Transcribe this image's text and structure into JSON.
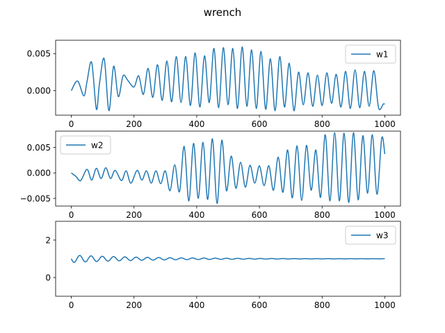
{
  "figure": {
    "title": "wrench"
  },
  "chart_data": [
    {
      "type": "line",
      "title": "",
      "xlabel": "",
      "ylabel": "",
      "xlim": [
        -50,
        1050
      ],
      "ylim": [
        -0.0033,
        0.0068
      ],
      "xticks": [
        0,
        200,
        400,
        600,
        800,
        1000
      ],
      "xtick_labels": [
        "0",
        "200",
        "400",
        "600",
        "800",
        "1000"
      ],
      "yticks": [
        0.0,
        0.005
      ],
      "ytick_labels": [
        "0.000",
        "0.005"
      ],
      "grid": false,
      "legend_position": "top-right",
      "color": "#1f77b4",
      "series": [
        {
          "name": "w1",
          "x": [
            0,
            20,
            40,
            50,
            65,
            80,
            90,
            105,
            120,
            135,
            150,
            165,
            180,
            200,
            215,
            230,
            245,
            260,
            275,
            290,
            305,
            320,
            335,
            350,
            365,
            380,
            395,
            410,
            425,
            440,
            455,
            470,
            485,
            500,
            515,
            530,
            545,
            560,
            575,
            590,
            605,
            620,
            635,
            650,
            665,
            680,
            695,
            710,
            725,
            740,
            755,
            770,
            785,
            800,
            815,
            830,
            845,
            860,
            875,
            890,
            905,
            920,
            935,
            950,
            965,
            980,
            995,
            1000
          ],
          "y": [
            0.0,
            0.0013,
            -0.0007,
            0.0012,
            0.0038,
            -0.0025,
            0.001,
            0.0043,
            -0.0027,
            0.0033,
            -0.0008,
            0.002,
            0.0014,
            0.0005,
            0.002,
            -0.0005,
            0.003,
            -0.0009,
            0.0035,
            -0.0013,
            0.004,
            -0.0015,
            0.0046,
            -0.0016,
            0.0046,
            -0.002,
            0.0051,
            -0.0022,
            0.0047,
            -0.0016,
            0.0057,
            -0.0023,
            0.0058,
            -0.0019,
            0.0057,
            -0.0024,
            0.0059,
            -0.0021,
            0.0055,
            -0.0024,
            0.0053,
            -0.0025,
            0.0043,
            -0.0027,
            0.0046,
            -0.0022,
            0.0037,
            -0.0027,
            0.0025,
            -0.0019,
            0.0024,
            -0.0021,
            0.0021,
            -0.002,
            0.0024,
            -0.0017,
            0.0022,
            -0.0022,
            0.0026,
            -0.0024,
            0.0028,
            -0.0023,
            0.0026,
            -0.0021,
            0.0027,
            -0.0023,
            -0.0018,
            -0.0018
          ]
        }
      ]
    },
    {
      "type": "line",
      "title": "",
      "xlabel": "",
      "ylabel": "",
      "xlim": [
        -50,
        1050
      ],
      "ylim": [
        -0.0065,
        0.0082
      ],
      "xticks": [
        0,
        200,
        400,
        600,
        800,
        1000
      ],
      "xtick_labels": [
        "0",
        "200",
        "400",
        "600",
        "800",
        "1000"
      ],
      "yticks": [
        -0.005,
        0.0,
        0.005
      ],
      "ytick_labels": [
        "−0.005",
        "0.000",
        "0.005"
      ],
      "grid": false,
      "legend_position": "top-left",
      "color": "#1f77b4",
      "series": [
        {
          "name": "w2",
          "x": [
            0,
            15,
            30,
            50,
            65,
            80,
            95,
            110,
            125,
            140,
            160,
            175,
            190,
            210,
            225,
            240,
            255,
            270,
            285,
            300,
            315,
            330,
            345,
            360,
            375,
            390,
            405,
            420,
            435,
            450,
            465,
            480,
            495,
            510,
            525,
            540,
            555,
            570,
            585,
            600,
            615,
            630,
            645,
            660,
            675,
            690,
            705,
            720,
            735,
            750,
            765,
            780,
            795,
            810,
            825,
            840,
            855,
            870,
            885,
            900,
            915,
            930,
            945,
            960,
            975,
            990,
            1000
          ],
          "y": [
            0.0,
            -0.0007,
            -0.0015,
            0.0007,
            -0.0014,
            0.0009,
            -0.0011,
            0.001,
            -0.0011,
            0.0005,
            -0.0015,
            0.0004,
            -0.002,
            0.0005,
            -0.0014,
            0.0004,
            -0.002,
            0.0004,
            -0.0021,
            0.0004,
            -0.0035,
            0.0016,
            -0.0037,
            0.0052,
            -0.0055,
            0.0058,
            -0.005,
            0.006,
            -0.0052,
            0.0067,
            -0.006,
            0.0064,
            -0.0035,
            0.0033,
            -0.003,
            0.0021,
            -0.0028,
            0.0015,
            -0.002,
            0.0014,
            -0.0025,
            0.0014,
            -0.0034,
            0.0031,
            -0.0038,
            0.0045,
            -0.0049,
            0.0053,
            -0.0054,
            0.0054,
            -0.0034,
            0.0045,
            -0.0048,
            0.0075,
            -0.0055,
            0.0079,
            -0.0055,
            0.0078,
            -0.0058,
            0.0079,
            -0.0053,
            0.0073,
            -0.004,
            0.0075,
            -0.0042,
            0.0068,
            0.0037
          ]
        }
      ]
    },
    {
      "type": "line",
      "title": "",
      "xlabel": "",
      "ylabel": "",
      "xlim": [
        -50,
        1050
      ],
      "ylim": [
        -1.0,
        3.0
      ],
      "xticks": [
        0,
        200,
        400,
        600,
        800,
        1000
      ],
      "xtick_labels": [
        "0",
        "200",
        "400",
        "600",
        "800",
        "1000"
      ],
      "yticks": [
        0,
        2
      ],
      "ytick_labels": [
        "0",
        "2"
      ],
      "grid": false,
      "legend_position": "top-right",
      "color": "#1f77b4",
      "damped_oscillation": {
        "baseline": 1.0,
        "amplitude": 0.2,
        "period": 36,
        "decay": 250
      },
      "series": [
        {
          "name": "w3",
          "x": [
            0,
            10,
            20,
            30,
            40,
            50,
            60,
            70,
            80,
            90,
            100,
            120,
            140,
            160,
            180,
            200,
            220,
            240,
            260,
            280,
            300,
            320,
            340,
            360,
            380,
            400,
            420,
            440,
            460,
            480,
            500,
            520,
            540,
            560,
            580,
            600,
            620,
            640,
            660,
            680,
            700,
            720,
            740,
            760,
            780,
            800,
            820,
            840,
            860,
            880,
            900,
            920,
            940,
            960,
            980,
            1000
          ],
          "y": [
            1.0,
            0.85,
            0.87,
            1.1,
            1.15,
            0.93,
            0.85,
            1.0,
            1.12,
            1.02,
            0.87,
            1.12,
            0.9,
            1.05,
            1.1,
            0.92,
            1.0,
            1.08,
            0.93,
            1.03,
            1.06,
            0.95,
            1.0,
            1.05,
            0.96,
            1.02,
            1.03,
            0.97,
            1.0,
            1.03,
            0.98,
            1.01,
            1.02,
            0.98,
            1.0,
            1.02,
            0.99,
            1.0,
            1.01,
            0.99,
            1.0,
            1.01,
            0.99,
            1.0,
            1.01,
            1.0,
            1.0,
            1.01,
            1.0,
            1.0,
            1.0,
            1.0,
            1.0,
            1.0,
            1.0,
            1.0
          ]
        }
      ]
    }
  ]
}
